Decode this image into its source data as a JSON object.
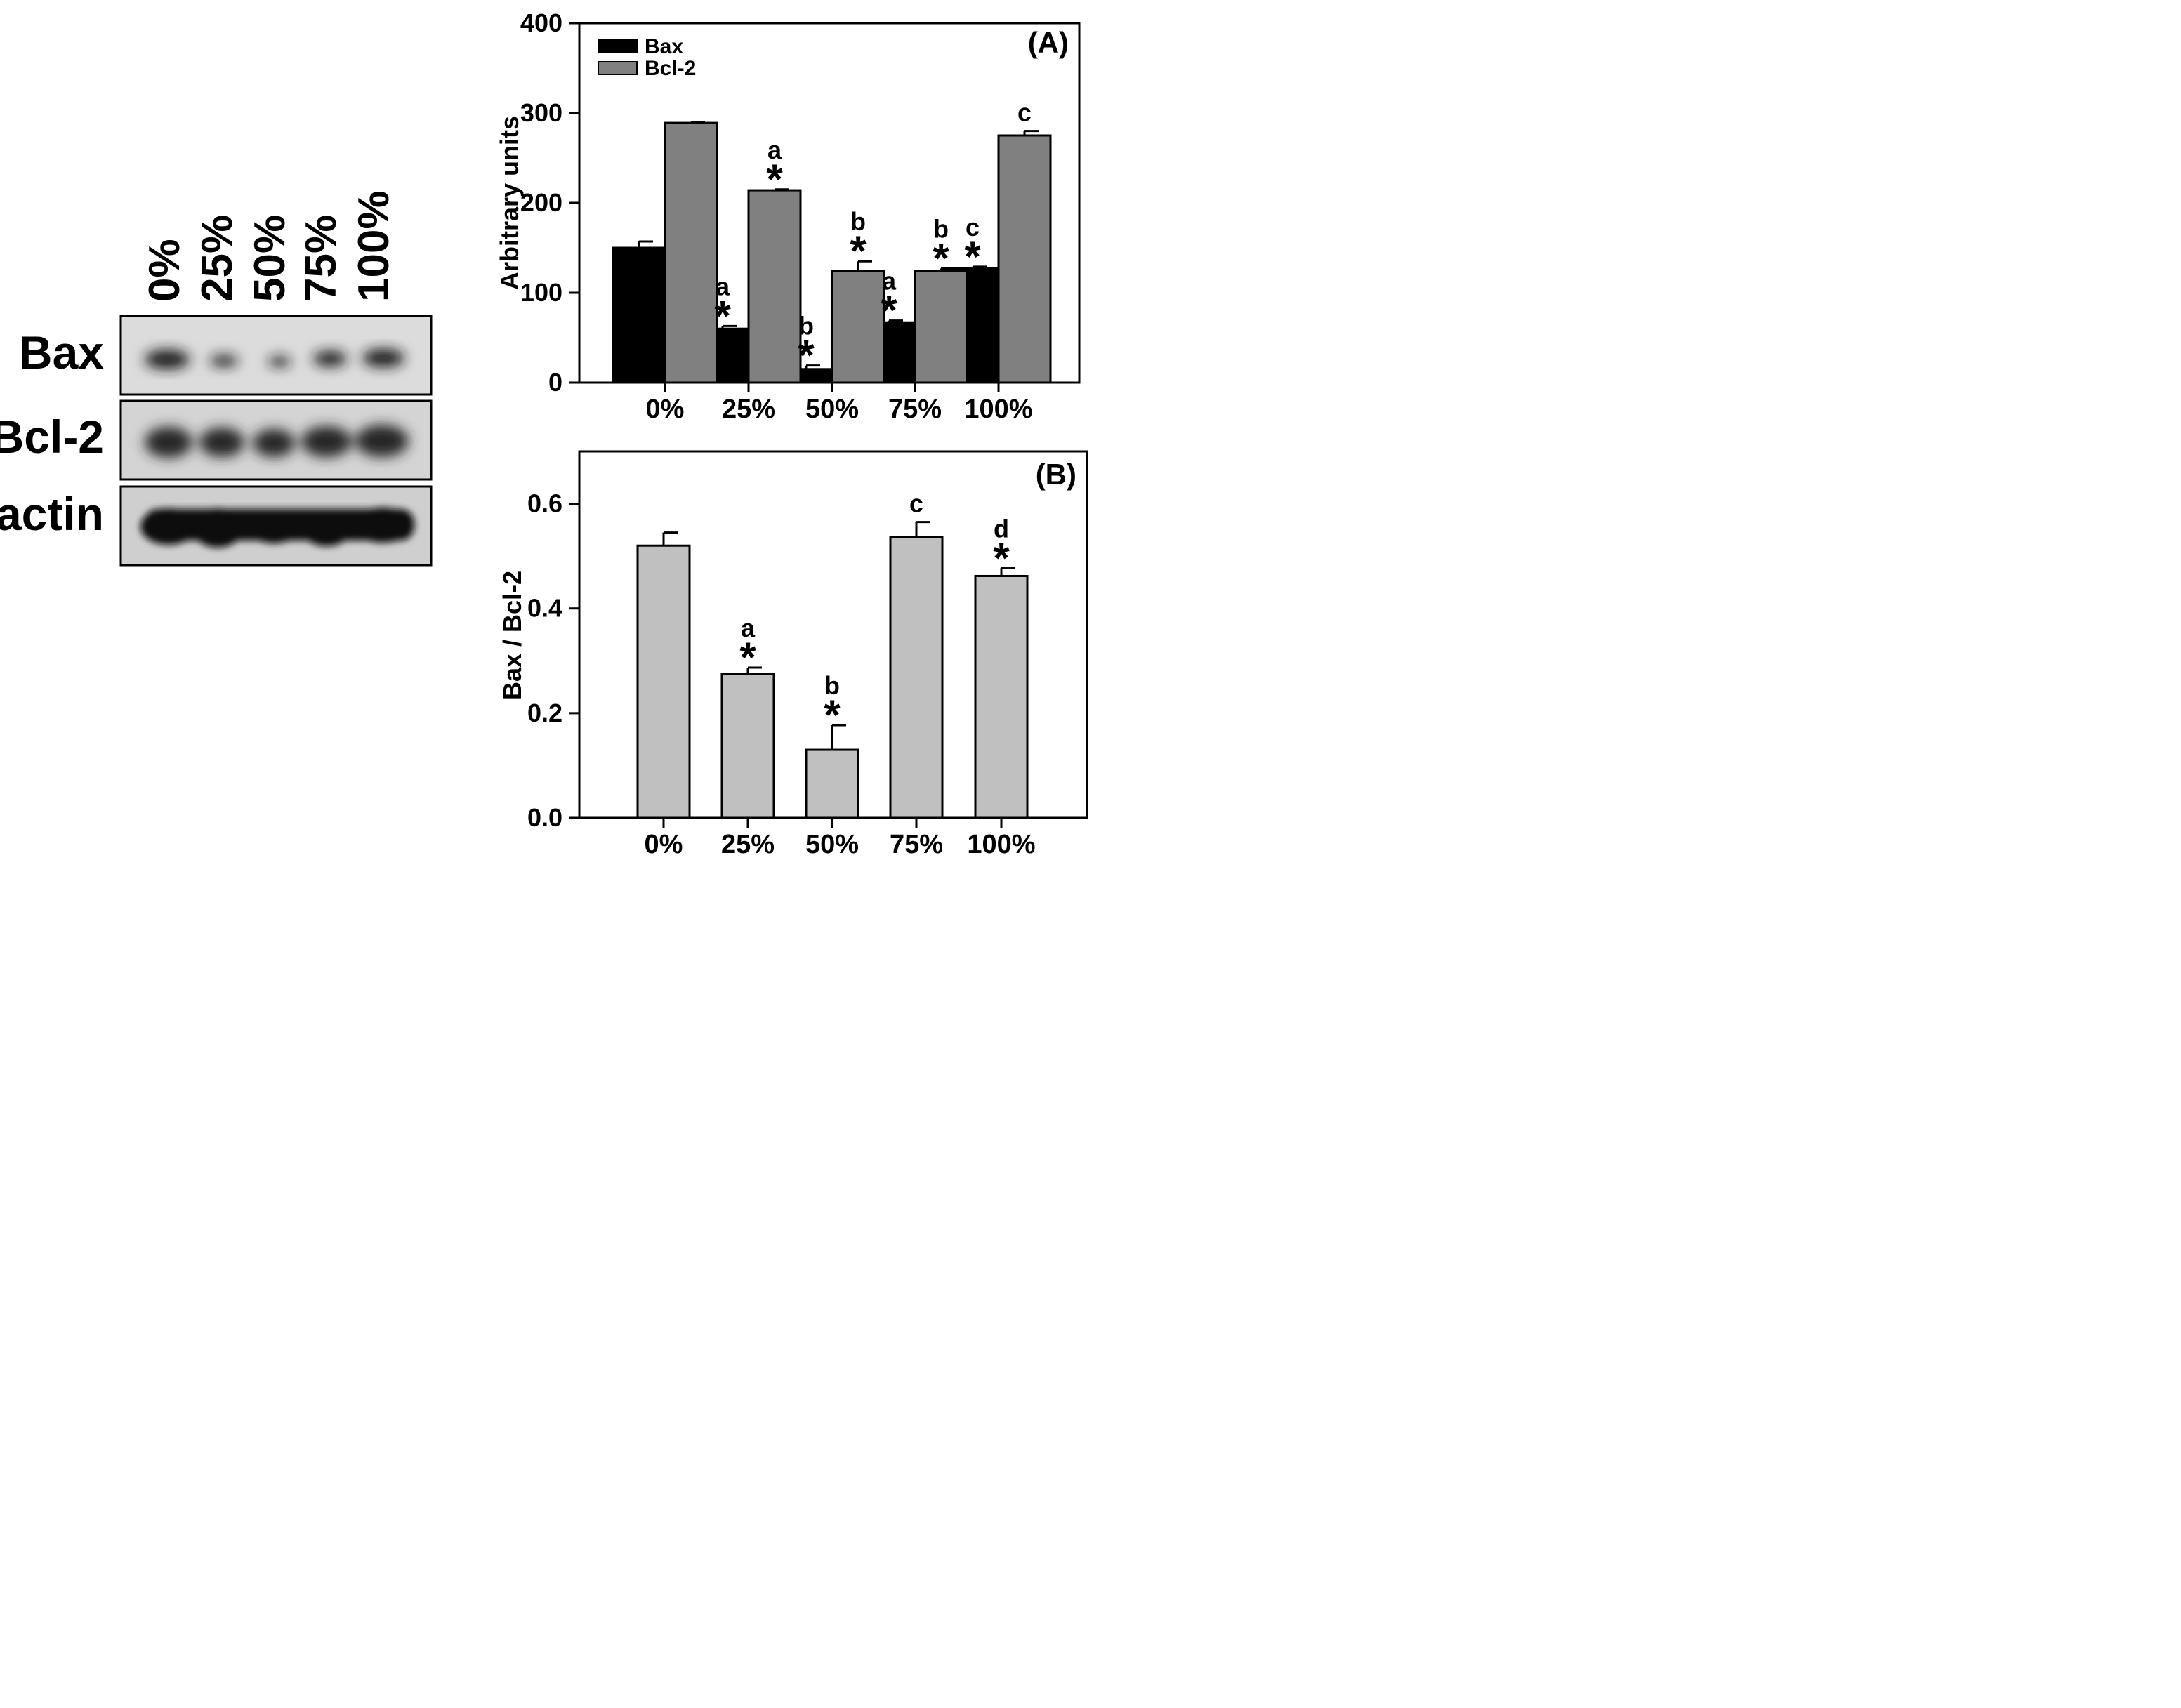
{
  "western_blot": {
    "lane_labels": [
      "0%",
      "25%",
      "50%",
      "75%",
      "100%"
    ],
    "row_labels": [
      "Bax",
      "Bcl-2",
      "β-actin"
    ]
  },
  "chart_data": [
    {
      "type": "bar",
      "panel_label": "(A)",
      "title": "",
      "xlabel": "",
      "ylabel": "Arbitrary units",
      "categories": [
        "0%",
        "25%",
        "50%",
        "75%",
        "100%"
      ],
      "ylim": [
        0,
        400
      ],
      "yticks": [
        0,
        100,
        200,
        300,
        400
      ],
      "legend_position": "top-left",
      "grid": false,
      "series": [
        {
          "name": "Bax",
          "color": "#000000",
          "values": [
            150,
            60,
            15,
            67,
            127
          ],
          "errors": [
            7,
            3,
            4,
            2,
            2
          ],
          "annotations": [
            [
              "",
              ""
            ],
            [
              "a",
              "*"
            ],
            [
              "b",
              "*"
            ],
            [
              "a",
              "*"
            ],
            [
              "c",
              "*"
            ]
          ]
        },
        {
          "name": "Bcl-2",
          "color": "#808080",
          "values": [
            289,
            214,
            124,
            124,
            275
          ],
          "errors": [
            1,
            1,
            11,
            3,
            5
          ],
          "annotations": [
            [
              "",
              ""
            ],
            [
              "a",
              "*"
            ],
            [
              "b",
              "*"
            ],
            [
              "b",
              "*"
            ],
            [
              "c",
              ""
            ]
          ]
        }
      ]
    },
    {
      "type": "bar",
      "panel_label": "(B)",
      "title": "",
      "xlabel": "",
      "ylabel": "Bax / Bcl-2",
      "categories": [
        "0%",
        "25%",
        "50%",
        "75%",
        "100%"
      ],
      "ylim": [
        0,
        0.7
      ],
      "yticks": [
        "0.0",
        "0.2",
        "0.4",
        "0.6"
      ],
      "grid": false,
      "series": [
        {
          "name": "Bax / Bcl-2",
          "color": "#c0c0c0",
          "values": [
            0.52,
            0.275,
            0.13,
            0.537,
            0.462
          ],
          "errors": [
            0.025,
            0.012,
            0.047,
            0.028,
            0.015
          ],
          "annotations": [
            [
              "",
              ""
            ],
            [
              "a",
              "*"
            ],
            [
              "b",
              "*"
            ],
            [
              "c",
              ""
            ],
            [
              "d",
              "*"
            ]
          ]
        }
      ]
    }
  ]
}
